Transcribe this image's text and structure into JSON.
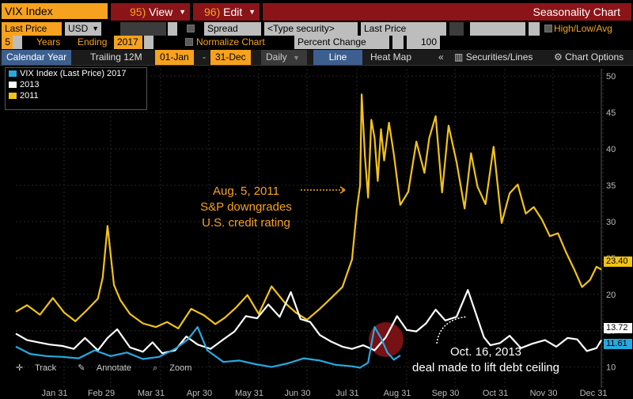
{
  "toolbar": {
    "security": "VIX Index",
    "view_label": "View",
    "view_num": "95)",
    "edit_label": "Edit",
    "edit_num": "96)",
    "title": "Seasonality Chart"
  },
  "fields": {
    "last_price": "Last Price",
    "currency": "USD",
    "spread_label": "Spread",
    "type_security": "<Type security>",
    "last_price2": "Last Price",
    "hla_label": "High/Low/Avg",
    "years_num": "5",
    "years_label": "Years",
    "ending_label": "Ending",
    "ending_year": "2017",
    "normalize_label": "Normalize Chart",
    "percent_change": "Percent Change",
    "percent_value": "100"
  },
  "tabs": {
    "calendar_year": "Calendar Year",
    "trailing": "Trailing 12M",
    "start_date": "01-Jan",
    "dash": "-",
    "end_date": "31-Dec",
    "daily": "Daily",
    "line": "Line",
    "heatmap": "Heat Map",
    "collapse": "«",
    "securities": "Securities/Lines",
    "chart_options": "Chart Options"
  },
  "legend": [
    {
      "label": "VIX Index (Last Price) 2017",
      "color": "#29a8e0"
    },
    {
      "label": "2013",
      "color": "#ffffff"
    },
    {
      "label": "2011",
      "color": "#f2c318"
    }
  ],
  "annotations": {
    "aug_line1": "Aug. 5, 2011",
    "aug_line2": "S&P downgrades",
    "aug_line3": "U.S. credit rating",
    "oct_line1": "Oct. 16, 2013",
    "oct_line2": "deal made to lift debt ceiling"
  },
  "bottom_tools": {
    "track": "Track",
    "annotate": "Annotate",
    "zoom": "Zoom"
  },
  "last_values": {
    "y2011": "23.40",
    "y2013": "13.72",
    "y2017": "11.61"
  },
  "chart_data": {
    "type": "line",
    "x_ticks": [
      "Jan 31",
      "Feb 29",
      "Mar 31",
      "Apr 30",
      "May 31",
      "Jun 30",
      "Jul 31",
      "Aug 31",
      "Sep 30",
      "Oct 31",
      "Nov 30",
      "Dec 31"
    ],
    "y_ticks": [
      10,
      15,
      20,
      25,
      30,
      35,
      40,
      45,
      50
    ],
    "ylim": [
      8,
      51
    ],
    "series": [
      {
        "name": "2011",
        "color": "#f2c318",
        "x": [
          1,
          8,
          16,
          24,
          31,
          38,
          45,
          52,
          55,
          58,
          62,
          66,
          72,
          80,
          88,
          95,
          102,
          110,
          118,
          125,
          131,
          138,
          145,
          152,
          160,
          168,
          175,
          182,
          190,
          197,
          204,
          210,
          213,
          215,
          216,
          218,
          220,
          222,
          224,
          226,
          228,
          230,
          233,
          236,
          240,
          245,
          250,
          255,
          258,
          262,
          266,
          270,
          275,
          280,
          284,
          288,
          293,
          298,
          303,
          308,
          313,
          318,
          323,
          328,
          333,
          338,
          343,
          348,
          353,
          358,
          362,
          365
        ],
        "values": [
          17.6,
          18.5,
          17.2,
          19.5,
          17.5,
          16.3,
          17.8,
          19.4,
          22.3,
          29.4,
          21.3,
          19.2,
          17.3,
          16.0,
          15.5,
          16.2,
          15.3,
          18.0,
          17.1,
          15.9,
          16.8,
          18.2,
          19.9,
          17.3,
          21.1,
          18.9,
          17.5,
          16.5,
          18.0,
          19.5,
          21.0,
          24.8,
          31.7,
          35.0,
          47.5,
          39.0,
          33.3,
          44.0,
          41.5,
          35.6,
          42.7,
          38.4,
          43.6,
          39.3,
          32.3,
          34.1,
          41.0,
          36.7,
          41.5,
          44.5,
          34.0,
          43.2,
          38.2,
          31.8,
          39.4,
          34.8,
          32.4,
          40.3,
          29.8,
          33.9,
          35.1,
          31.1,
          32.0,
          30.3,
          28.0,
          28.4,
          25.8,
          23.5,
          21.0,
          22.0,
          23.8,
          23.4
        ]
      },
      {
        "name": "2013",
        "color": "#ffffff",
        "x": [
          1,
          8,
          15,
          22,
          30,
          37,
          44,
          52,
          58,
          64,
          72,
          80,
          86,
          92,
          100,
          107,
          114,
          122,
          130,
          137,
          144,
          151,
          158,
          165,
          172,
          178,
          184,
          190,
          197,
          204,
          210,
          217,
          224,
          231,
          238,
          244,
          250,
          256,
          262,
          268,
          275,
          282,
          288,
          292,
          296,
          302,
          308,
          315,
          322,
          330,
          337,
          344,
          350,
          356,
          362,
          365
        ],
        "values": [
          14.6,
          13.7,
          13.4,
          13.1,
          12.9,
          12.5,
          14.0,
          12.3,
          14.0,
          15.2,
          12.7,
          12.1,
          13.4,
          11.9,
          12.3,
          14.2,
          13.1,
          12.5,
          13.8,
          14.9,
          17.0,
          16.7,
          18.6,
          16.9,
          20.3,
          16.6,
          16.2,
          14.4,
          13.5,
          12.8,
          12.5,
          13.0,
          12.3,
          14.1,
          17.0,
          15.1,
          14.9,
          16.0,
          17.9,
          16.4,
          16.9,
          20.6,
          16.7,
          14.1,
          13.0,
          13.3,
          14.3,
          12.6,
          13.2,
          13.7,
          12.8,
          14.0,
          13.8,
          12.2,
          12.6,
          13.7
        ]
      },
      {
        "name": "VIX Index (Last Price) 2017",
        "color": "#29a8e0",
        "x": [
          1,
          10,
          20,
          30,
          40,
          50,
          60,
          70,
          80,
          90,
          100,
          108,
          114,
          120,
          130,
          140,
          150,
          160,
          170,
          180,
          190,
          200,
          210,
          215,
          220,
          224,
          228,
          232,
          236,
          240
        ],
        "values": [
          12.8,
          11.8,
          11.5,
          11.4,
          11.2,
          12.3,
          11.5,
          12.0,
          11.1,
          11.4,
          12.5,
          13.8,
          15.5,
          12.3,
          10.7,
          10.9,
          10.4,
          10.0,
          10.5,
          11.2,
          10.9,
          10.3,
          10.1,
          9.9,
          10.6,
          15.5,
          14.0,
          12.0,
          11.0,
          11.6
        ]
      }
    ]
  }
}
